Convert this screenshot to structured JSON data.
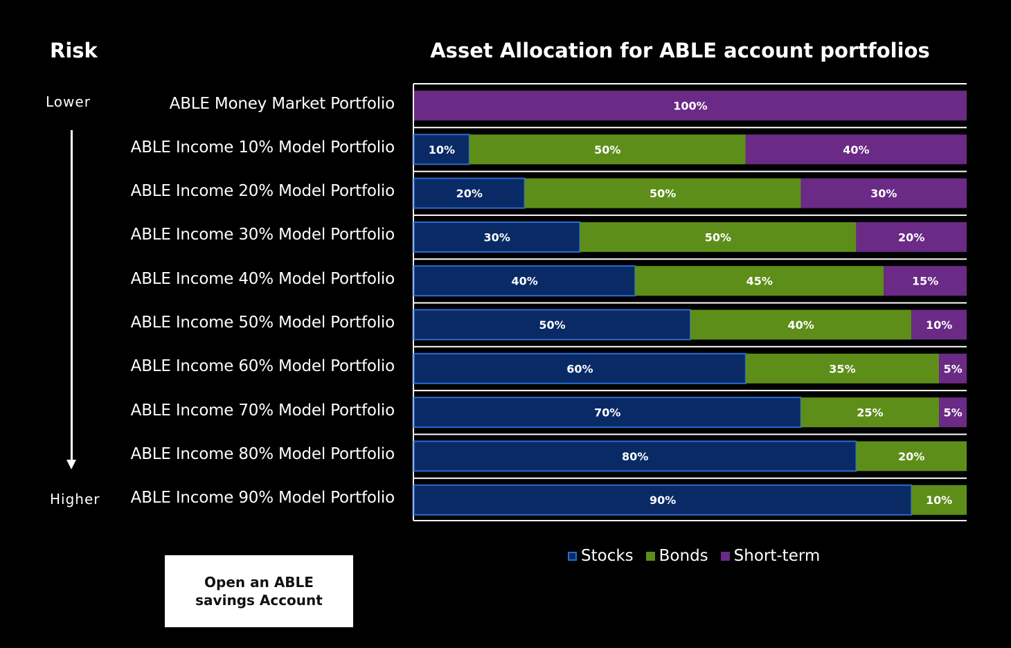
{
  "risk": {
    "title": "Risk",
    "lower": "Lower",
    "higher": "Higher"
  },
  "button": {
    "label": "Open an ABLE savings Account"
  },
  "colors": {
    "stocks": "#0a2a66",
    "stocks_border": "#2a6bd1",
    "bonds": "#5e8e1a",
    "short_term": "#6b2a86"
  },
  "chart_data": {
    "type": "bar",
    "orientation": "horizontal",
    "stacked": true,
    "title": "Asset Allocation for ABLE account portfolios",
    "xlim": [
      0,
      100
    ],
    "legend_position": "bottom",
    "categories": [
      "ABLE Money Market Portfolio",
      "ABLE Income 10% Model Portfolio",
      "ABLE Income 20% Model Portfolio",
      "ABLE Income 30% Model Portfolio",
      "ABLE Income 40% Model Portfolio",
      "ABLE Income 50% Model Portfolio",
      "ABLE Income 60% Model Portfolio",
      "ABLE Income 70% Model Portfolio",
      "ABLE Income 80% Model Portfolio",
      "ABLE Income 90% Model Portfolio"
    ],
    "series": [
      {
        "name": "Stocks",
        "values": [
          0,
          10,
          20,
          30,
          40,
          50,
          60,
          70,
          80,
          90
        ]
      },
      {
        "name": "Bonds",
        "values": [
          0,
          50,
          50,
          50,
          45,
          40,
          35,
          25,
          20,
          10
        ]
      },
      {
        "name": "Short-term",
        "values": [
          100,
          40,
          30,
          20,
          15,
          10,
          5,
          5,
          0,
          0
        ]
      }
    ]
  }
}
